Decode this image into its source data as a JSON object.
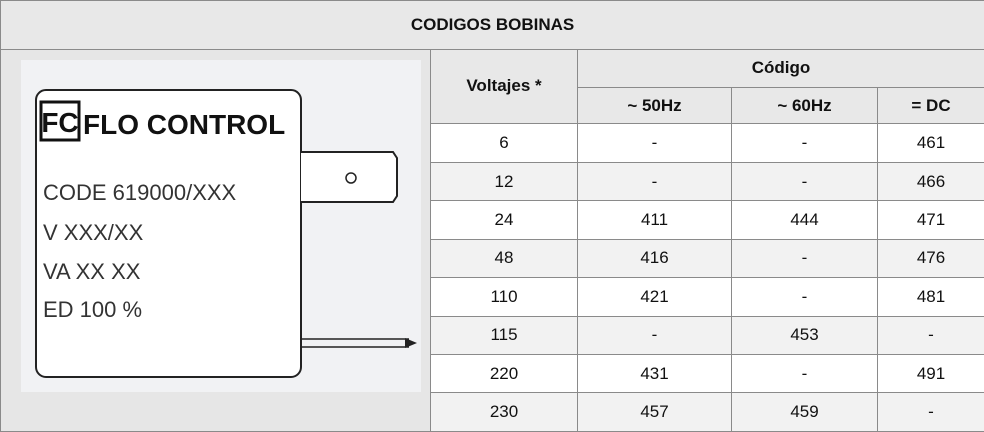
{
  "title": "CODIGOS BOBINAS",
  "coil": {
    "logo": "FC",
    "brand": "FLO CONTROL",
    "lines": [
      "CODE 619000/XXX",
      "V  XXX/XX",
      "VA  XX  XX",
      "ED 100 %"
    ]
  },
  "table": {
    "header": {
      "voltage": "Voltajes *",
      "code": "Código",
      "columns": [
        "~ 50Hz",
        "~ 60Hz",
        "= DC"
      ]
    },
    "rows": [
      [
        "6",
        "-",
        "-",
        "461"
      ],
      [
        "12",
        "-",
        "-",
        "466"
      ],
      [
        "24",
        "411",
        "444",
        "471"
      ],
      [
        "48",
        "416",
        "-",
        "476"
      ],
      [
        "110",
        "421",
        "-",
        "481"
      ],
      [
        "115",
        "-",
        "453",
        "-"
      ],
      [
        "220",
        "431",
        "-",
        "491"
      ],
      [
        "230",
        "457",
        "459",
        "-"
      ]
    ]
  }
}
